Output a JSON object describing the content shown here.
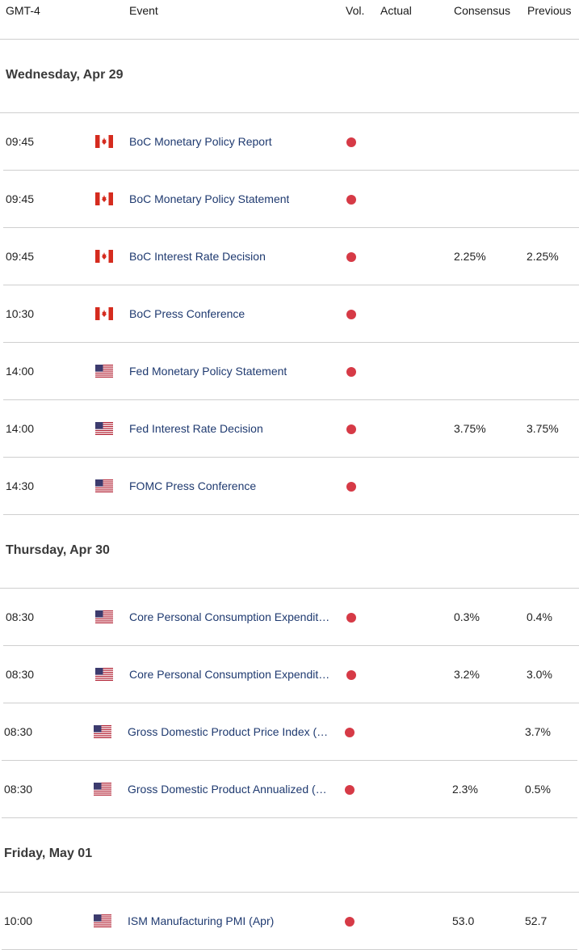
{
  "header": {
    "timezone": "GMT-4",
    "event": "Event",
    "vol": "Vol.",
    "actual": "Actual",
    "consensus": "Consensus",
    "previous": "Previous"
  },
  "colors": {
    "high_impact": "#d63a46",
    "event_link": "#1f3a70"
  },
  "days": [
    {
      "title": "Wednesday, Apr 29",
      "events": [
        {
          "time": "09:45",
          "flag": "canada-flag-icon",
          "name": "BoC Monetary Policy Report",
          "actual": "",
          "consensus": "",
          "previous": ""
        },
        {
          "time": "09:45",
          "flag": "canada-flag-icon",
          "name": "BoC Monetary Policy Statement",
          "actual": "",
          "consensus": "",
          "previous": ""
        },
        {
          "time": "09:45",
          "flag": "canada-flag-icon",
          "name": "BoC Interest Rate Decision",
          "actual": "",
          "consensus": "2.25%",
          "previous": "2.25%"
        },
        {
          "time": "10:30",
          "flag": "canada-flag-icon",
          "name": "BoC Press Conference",
          "actual": "",
          "consensus": "",
          "previous": ""
        },
        {
          "time": "14:00",
          "flag": "us-flag-icon",
          "name": "Fed Monetary Policy Statement",
          "actual": "",
          "consensus": "",
          "previous": ""
        },
        {
          "time": "14:00",
          "flag": "us-flag-icon",
          "name": "Fed Interest Rate Decision",
          "actual": "",
          "consensus": "3.75%",
          "previous": "3.75%"
        },
        {
          "time": "14:30",
          "flag": "us-flag-icon",
          "name": "FOMC Press Conference",
          "actual": "",
          "consensus": "",
          "previous": ""
        }
      ]
    },
    {
      "title": "Thursday, Apr 30",
      "events": [
        {
          "time": "08:30",
          "flag": "us-flag-icon",
          "name": "Core Personal Consumption Expendit…",
          "actual": "",
          "consensus": "0.3%",
          "previous": "0.4%"
        },
        {
          "time": "08:30",
          "flag": "us-flag-icon",
          "name": "Core Personal Consumption Expendit…",
          "actual": "",
          "consensus": "3.2%",
          "previous": "3.0%"
        },
        {
          "time": "08:30",
          "flag": "us-flag-icon",
          "name": "Gross Domestic Product Price Index (…",
          "actual": "",
          "consensus": "",
          "previous": "3.7%"
        },
        {
          "time": "08:30",
          "flag": "us-flag-icon",
          "name": "Gross Domestic Product Annualized (…",
          "actual": "",
          "consensus": "2.3%",
          "previous": "0.5%"
        }
      ]
    },
    {
      "title": "Friday, May 01",
      "events": [
        {
          "time": "10:00",
          "flag": "us-flag-icon",
          "name": "ISM Manufacturing PMI (Apr)",
          "actual": "",
          "consensus": "53.0",
          "previous": "52.7"
        }
      ]
    }
  ]
}
